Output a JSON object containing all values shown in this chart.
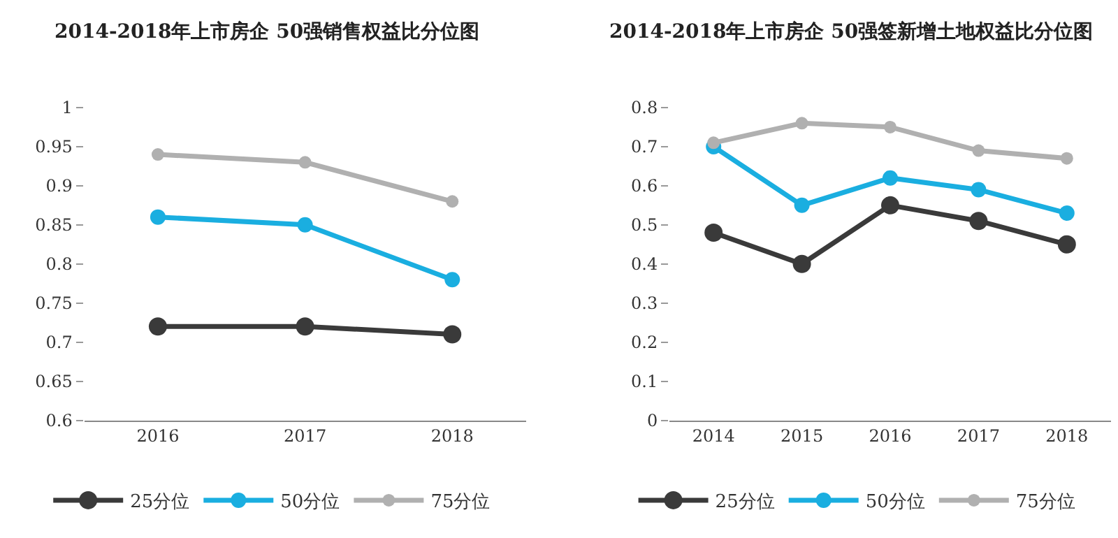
{
  "chart_data": [
    {
      "type": "line",
      "title": "2014-2018年上市房企 50强销售权益比分位图",
      "categories": [
        "2016",
        "2017",
        "2018"
      ],
      "ylim": [
        0.6,
        1
      ],
      "yticks": [
        0.6,
        0.65,
        0.7,
        0.75,
        0.8,
        0.85,
        0.9,
        0.95,
        1
      ],
      "legend": "bottom",
      "marker": "circle",
      "line_style": "solid",
      "series": [
        {
          "name": "25分位",
          "color": "#3a3a3a",
          "values": [
            0.72,
            0.72,
            0.71
          ]
        },
        {
          "name": "50分位",
          "color": "#1aaee0",
          "values": [
            0.86,
            0.85,
            0.78
          ]
        },
        {
          "name": "75分位",
          "color": "#b0b0b0",
          "values": [
            0.94,
            0.93,
            0.88
          ]
        }
      ]
    },
    {
      "type": "line",
      "title": "2014-2018年上市房企 50强签新增土地权益比分位图",
      "categories": [
        "2014",
        "2015",
        "2016",
        "2017",
        "2018"
      ],
      "ylim": [
        0,
        0.8
      ],
      "yticks": [
        0,
        0.1,
        0.2,
        0.3,
        0.4,
        0.5,
        0.6,
        0.7,
        0.8
      ],
      "legend": "bottom",
      "marker": "circle",
      "line_style": "solid",
      "series": [
        {
          "name": "25分位",
          "color": "#3a3a3a",
          "values": [
            0.48,
            0.4,
            0.55,
            0.51,
            0.45
          ]
        },
        {
          "name": "50分位",
          "color": "#1aaee0",
          "values": [
            0.7,
            0.55,
            0.62,
            0.59,
            0.53
          ]
        },
        {
          "name": "75分位",
          "color": "#b0b0b0",
          "values": [
            0.71,
            0.76,
            0.75,
            0.69,
            0.67
          ]
        }
      ]
    }
  ]
}
